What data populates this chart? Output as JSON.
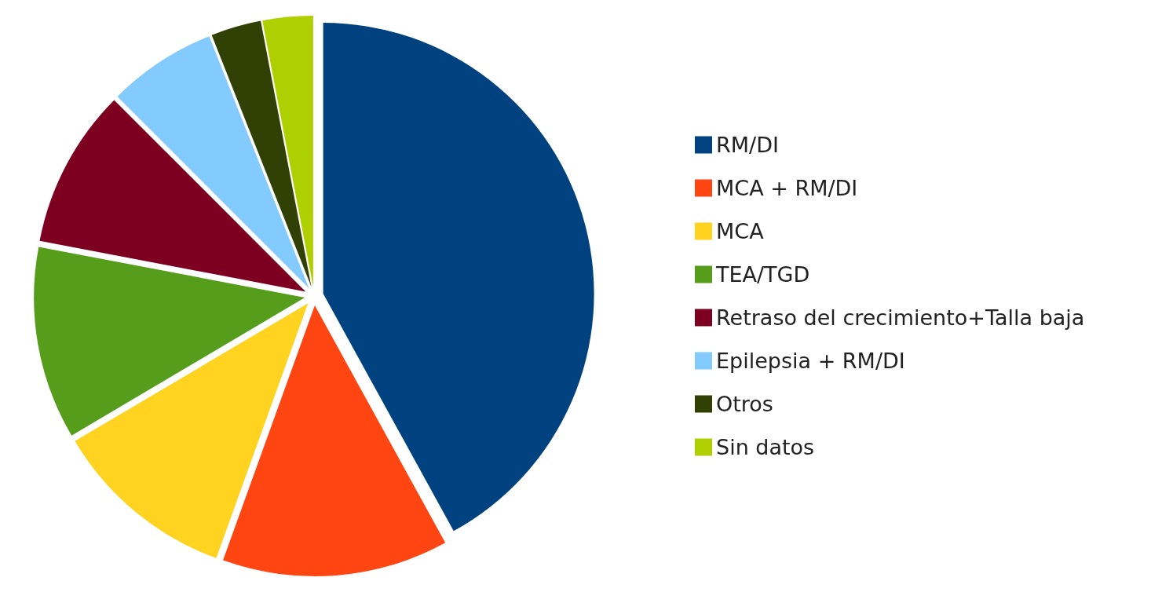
{
  "chart_data": {
    "type": "pie",
    "categories": [
      "RM/DI",
      "MCA + RM/DI",
      "MCA",
      "TEA/TGD",
      "Retraso del crecimiento+Talla baja",
      "Epilepsia + RM/DI",
      "Otros",
      "Sin datos"
    ],
    "values": [
      42,
      13.5,
      11,
      11.5,
      9.5,
      6.5,
      3,
      3
    ],
    "colors": [
      "#00427f",
      "#ff4512",
      "#ffd320",
      "#579d1c",
      "#7e0021",
      "#83caff",
      "#314004",
      "#aecf00"
    ],
    "legend": "right"
  }
}
